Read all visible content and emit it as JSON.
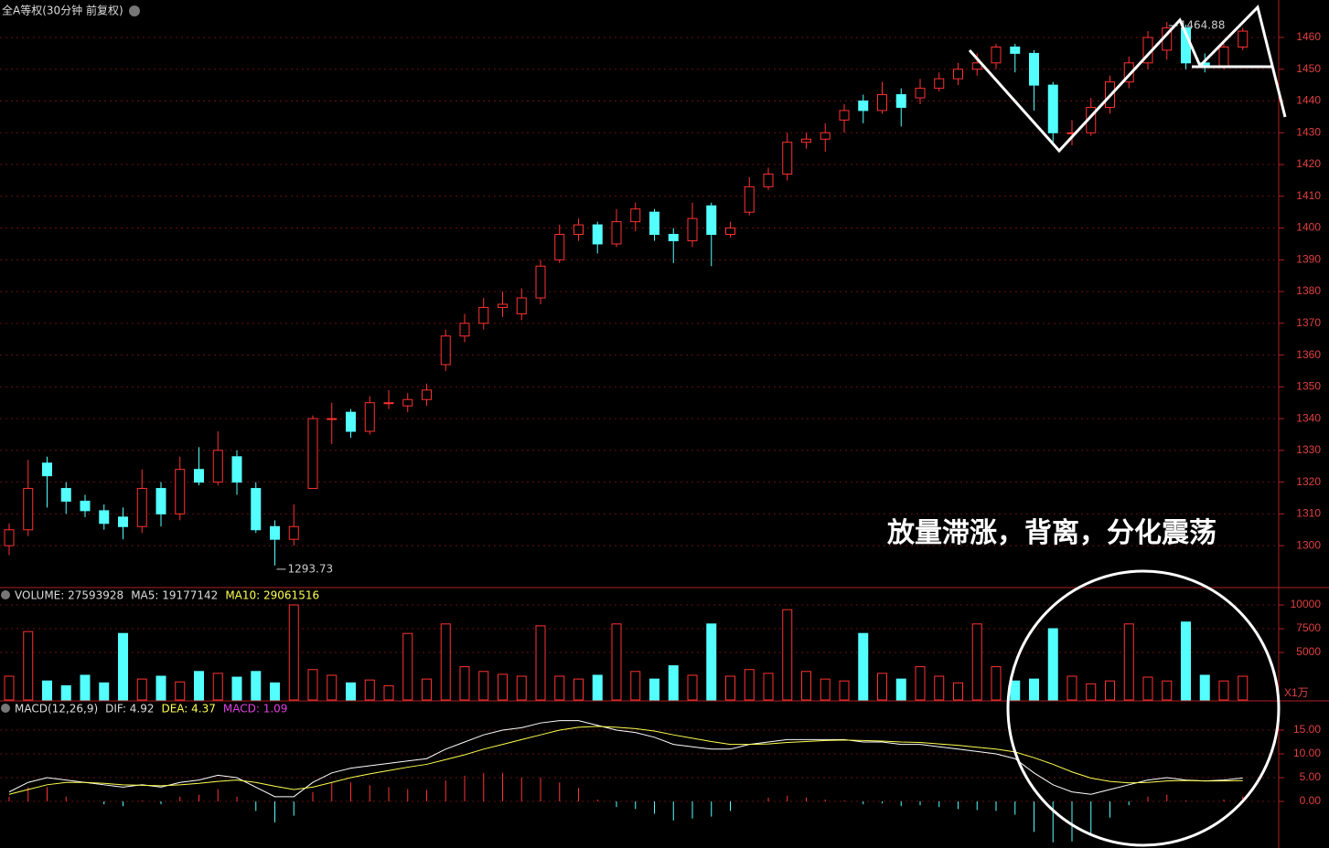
{
  "chart_data": {
    "type": "candlestick",
    "title": "全A等权(30分钟 前复权)",
    "annotation": "放量滞涨，背离，分化震荡",
    "high_label": "1464.88",
    "low_label": "1293.73",
    "up_color": "#ff3232",
    "down_color": "#54ffff",
    "ylim": [
      1286.8,
      1471.8
    ],
    "yticks": [
      1300,
      1310,
      1320,
      1330,
      1340,
      1350,
      1360,
      1370,
      1380,
      1390,
      1400,
      1410,
      1420,
      1430,
      1440,
      1450,
      1460
    ],
    "grid": true,
    "candles": [
      [
        1300,
        1307,
        1297,
        1305
      ],
      [
        1305,
        1327,
        1303,
        1318
      ],
      [
        1326,
        1328,
        1312,
        1322
      ],
      [
        1318,
        1320,
        1310,
        1314
      ],
      [
        1314,
        1316,
        1309,
        1311
      ],
      [
        1311,
        1313,
        1305,
        1307
      ],
      [
        1309,
        1312,
        1302,
        1306
      ],
      [
        1306,
        1324,
        1304,
        1318
      ],
      [
        1318,
        1320,
        1306,
        1310
      ],
      [
        1310,
        1328,
        1308,
        1324
      ],
      [
        1324,
        1331,
        1319,
        1320
      ],
      [
        1320,
        1336,
        1319,
        1330
      ],
      [
        1328,
        1330,
        1316,
        1320
      ],
      [
        1318,
        1320,
        1304,
        1305
      ],
      [
        1306,
        1308,
        1293.73,
        1302
      ],
      [
        1302,
        1313,
        1300,
        1306
      ],
      [
        1318,
        1341,
        1318,
        1340
      ],
      [
        1340,
        1345,
        1332,
        1340
      ],
      [
        1342,
        1343,
        1334,
        1336
      ],
      [
        1336,
        1347,
        1335,
        1345
      ],
      [
        1345,
        1349,
        1343,
        1345
      ],
      [
        1344,
        1348,
        1342,
        1346
      ],
      [
        1346,
        1351,
        1344,
        1349
      ],
      [
        1357,
        1368,
        1355,
        1366
      ],
      [
        1366,
        1373,
        1364,
        1370
      ],
      [
        1370,
        1378,
        1368,
        1375
      ],
      [
        1375,
        1380,
        1372,
        1376
      ],
      [
        1373,
        1381,
        1371,
        1378
      ],
      [
        1378,
        1390,
        1376,
        1388
      ],
      [
        1390,
        1401,
        1389,
        1398
      ],
      [
        1398,
        1403,
        1396,
        1401
      ],
      [
        1401,
        1402,
        1392,
        1395
      ],
      [
        1395,
        1406,
        1394,
        1402
      ],
      [
        1402,
        1408,
        1399,
        1406
      ],
      [
        1405,
        1406,
        1396,
        1398
      ],
      [
        1398,
        1400,
        1389,
        1396
      ],
      [
        1396,
        1408,
        1394,
        1403
      ],
      [
        1407,
        1408,
        1388,
        1398
      ],
      [
        1398,
        1402,
        1397,
        1400
      ],
      [
        1405,
        1416,
        1404,
        1413
      ],
      [
        1413,
        1419,
        1412,
        1417
      ],
      [
        1417,
        1430,
        1415,
        1427
      ],
      [
        1427,
        1430,
        1425,
        1428
      ],
      [
        1428,
        1433,
        1424,
        1430
      ],
      [
        1434,
        1439,
        1430,
        1437
      ],
      [
        1440,
        1442,
        1433,
        1437
      ],
      [
        1437,
        1446,
        1436,
        1442
      ],
      [
        1442,
        1444,
        1432,
        1438
      ],
      [
        1441,
        1447,
        1439,
        1444
      ],
      [
        1444,
        1449,
        1443,
        1447
      ],
      [
        1447,
        1452,
        1445,
        1450
      ],
      [
        1450,
        1455,
        1448,
        1452
      ],
      [
        1452,
        1458,
        1450,
        1457
      ],
      [
        1457,
        1458,
        1449,
        1455
      ],
      [
        1455,
        1456,
        1437,
        1445
      ],
      [
        1445,
        1446,
        1427,
        1430
      ],
      [
        1430,
        1434,
        1426,
        1430
      ],
      [
        1430,
        1441,
        1429,
        1438
      ],
      [
        1438,
        1448,
        1436,
        1446
      ],
      [
        1446,
        1454,
        1444,
        1452
      ],
      [
        1452,
        1462,
        1450,
        1460
      ],
      [
        1456,
        1464.88,
        1453,
        1463
      ],
      [
        1463,
        1464,
        1450,
        1452
      ],
      [
        1452,
        1455,
        1449,
        1451
      ],
      [
        1451,
        1458,
        1450,
        1457
      ],
      [
        1457,
        1463,
        1456,
        1462
      ]
    ],
    "volume": {
      "legend": [
        "VOLUME: 27593928",
        "MA5: 19177142",
        "MA10: 29061516"
      ],
      "unit": "X1万",
      "ylim": [
        0,
        11827
      ],
      "yticks": [
        5000,
        7500,
        10000
      ],
      "values": [
        2500,
        7200,
        2000,
        1500,
        2600,
        1800,
        7000,
        2200,
        2500,
        1900,
        3000,
        2800,
        2400,
        3000,
        1800,
        10000,
        3200,
        2600,
        1800,
        2100,
        1500,
        7000,
        2200,
        8000,
        3500,
        3000,
        2700,
        2500,
        7800,
        2500,
        2200,
        2600,
        8000,
        3000,
        2200,
        3600,
        2600,
        8000,
        2500,
        3200,
        2800,
        9500,
        3000,
        2200,
        2000,
        7000,
        2800,
        2200,
        3500,
        2500,
        1800,
        8000,
        3500,
        2000,
        2200,
        7500,
        2500,
        1700,
        2000,
        8000,
        2400,
        2000,
        8200,
        2600,
        2000,
        2500
      ]
    },
    "macd": {
      "legend": [
        "MACD(12,26,9)",
        "DIF: 4.92",
        "DEA: 4.37",
        "MACD: 1.09"
      ],
      "ylim": [
        -9.8,
        21.15
      ],
      "yticks": [
        {
          "value": 0,
          "label": "0.00"
        },
        {
          "value": 5,
          "label": "5.00"
        },
        {
          "value": 10,
          "label": "10.00"
        },
        {
          "value": 15,
          "label": "15.00"
        }
      ],
      "dif": [
        2,
        4,
        5,
        4.5,
        4,
        3.5,
        3,
        3.5,
        3,
        4,
        4.5,
        5.5,
        5,
        3,
        1,
        1,
        4,
        6,
        7,
        7.5,
        8,
        8.5,
        9,
        11,
        12.5,
        14,
        15,
        15.5,
        16.5,
        17,
        17,
        16,
        15,
        14.5,
        13.5,
        12,
        11.5,
        11,
        11,
        12,
        12.5,
        13,
        13,
        13,
        13,
        12.5,
        12.5,
        12,
        12,
        11.5,
        11,
        10.5,
        10,
        9,
        6,
        3.5,
        2,
        1.5,
        2.5,
        3.5,
        4.5,
        5,
        4.5,
        4.3,
        4.5,
        4.92
      ],
      "dea": [
        1.5,
        2.5,
        3.5,
        4,
        4,
        3.8,
        3.5,
        3.4,
        3.3,
        3.5,
        3.8,
        4.2,
        4.5,
        4,
        3.2,
        2.5,
        3,
        4,
        5,
        5.8,
        6.5,
        7.2,
        7.8,
        8.8,
        9.8,
        11,
        12,
        13,
        14,
        15,
        15.6,
        15.8,
        15.6,
        15.3,
        14.8,
        14,
        13.3,
        12.6,
        12,
        12,
        12.1,
        12.4,
        12.6,
        12.8,
        12.9,
        12.8,
        12.7,
        12.5,
        12.4,
        12.1,
        11.8,
        11.4,
        11,
        10.4,
        9.2,
        7.8,
        6.2,
        4.9,
        4.2,
        3.9,
        4,
        4.3,
        4.4,
        4.3,
        4.3,
        4.37
      ],
      "hist": [
        1,
        3,
        3,
        1,
        0,
        -0.6,
        -1,
        0.2,
        -0.6,
        1,
        1.4,
        2.6,
        1,
        -2,
        -4.4,
        -3,
        2,
        4,
        4,
        3.4,
        3,
        2.6,
        2.4,
        4.4,
        5.4,
        6,
        6,
        5,
        5,
        4,
        2.8,
        0.4,
        -1.2,
        -1.6,
        -2.6,
        -4,
        -3.6,
        -3.2,
        -2,
        0,
        0.8,
        1.2,
        0.8,
        0.4,
        0.2,
        -0.6,
        -0.4,
        -1,
        -0.8,
        -1.2,
        -1.6,
        -1.8,
        -2,
        -2.8,
        -6.4,
        -8.6,
        -8.4,
        -6.8,
        -3.4,
        -0.8,
        1,
        1.4,
        0.2,
        0,
        0.4,
        1.09
      ]
    }
  }
}
